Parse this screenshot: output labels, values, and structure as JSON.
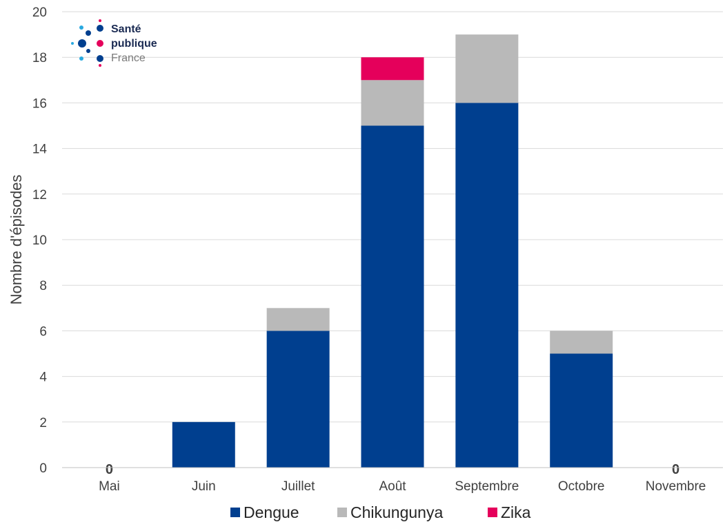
{
  "logo": {
    "line1": "Santé",
    "line2": "publique",
    "line3": "France"
  },
  "chart_data": {
    "type": "bar",
    "stacked": true,
    "categories": [
      "Mai",
      "Juin",
      "Juillet",
      "Août",
      "Septembre",
      "Octobre",
      "Novembre"
    ],
    "series": [
      {
        "name": "Dengue",
        "color": "#003f8f",
        "values": [
          0,
          2,
          6,
          15,
          16,
          5,
          0
        ]
      },
      {
        "name": "Chikungunya",
        "color": "#b9b9b9",
        "values": [
          0,
          0,
          1,
          2,
          3,
          1,
          0
        ]
      },
      {
        "name": "Zika",
        "color": "#e5005b",
        "values": [
          0,
          0,
          0,
          1,
          0,
          0,
          0
        ]
      }
    ],
    "zero_labels": [
      {
        "category": "Mai",
        "text": "0"
      },
      {
        "category": "Novembre",
        "text": "0"
      }
    ],
    "ylabel": "Nombre d'épisodes",
    "xlabel": "",
    "ylim": [
      0,
      20
    ],
    "yticks": [
      0,
      2,
      4,
      6,
      8,
      10,
      12,
      14,
      16,
      18,
      20
    ],
    "grid": true,
    "legend_position": "bottom"
  }
}
